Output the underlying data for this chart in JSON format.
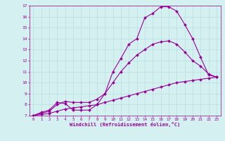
{
  "xlabel": "Windchill (Refroidissement éolien,°C)",
  "bg_color": "#d4f0f0",
  "grid_color": "#b8e0e0",
  "line_color": "#990099",
  "xlim": [
    -0.5,
    23.5
  ],
  "ylim": [
    7,
    17
  ],
  "xticks": [
    0,
    1,
    2,
    3,
    4,
    5,
    6,
    7,
    8,
    9,
    10,
    11,
    12,
    13,
    14,
    15,
    16,
    17,
    18,
    19,
    20,
    21,
    22,
    23
  ],
  "yticks": [
    7,
    8,
    9,
    10,
    11,
    12,
    13,
    14,
    15,
    16,
    17
  ],
  "curve1_x": [
    0,
    1,
    2,
    3,
    4,
    5,
    6,
    7,
    8,
    9,
    10,
    11,
    12,
    13,
    14,
    15,
    16,
    17,
    18,
    19,
    20,
    21,
    22,
    23
  ],
  "curve1_y": [
    7.0,
    7.3,
    7.5,
    8.2,
    8.1,
    7.5,
    7.5,
    7.5,
    8.0,
    9.0,
    11.0,
    12.2,
    13.5,
    14.0,
    15.9,
    16.3,
    16.9,
    16.9,
    16.5,
    15.3,
    14.0,
    12.3,
    10.7,
    10.5
  ],
  "curve2_x": [
    0,
    1,
    2,
    3,
    4,
    5,
    6,
    7,
    8,
    9,
    10,
    11,
    12,
    13,
    14,
    15,
    16,
    17,
    18,
    19,
    20,
    21,
    22,
    23
  ],
  "curve2_y": [
    7.0,
    7.2,
    7.4,
    8.0,
    8.3,
    8.2,
    8.2,
    8.2,
    8.5,
    9.0,
    10.0,
    11.0,
    11.8,
    12.5,
    13.0,
    13.5,
    13.7,
    13.8,
    13.5,
    12.8,
    12.0,
    11.5,
    10.8,
    10.5
  ],
  "curve3_x": [
    0,
    1,
    2,
    3,
    4,
    5,
    6,
    7,
    8,
    9,
    10,
    11,
    12,
    13,
    14,
    15,
    16,
    17,
    18,
    19,
    20,
    21,
    22,
    23
  ],
  "curve3_y": [
    7.0,
    7.1,
    7.2,
    7.4,
    7.6,
    7.7,
    7.8,
    7.9,
    8.0,
    8.2,
    8.4,
    8.6,
    8.8,
    9.0,
    9.2,
    9.4,
    9.6,
    9.8,
    10.0,
    10.1,
    10.2,
    10.3,
    10.4,
    10.5
  ],
  "marker": "D",
  "markersize": 2.0,
  "linewidth": 0.8
}
